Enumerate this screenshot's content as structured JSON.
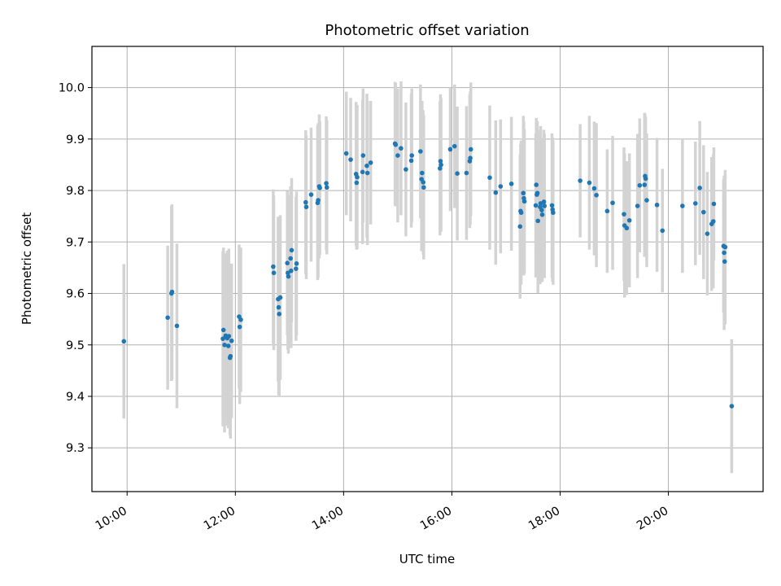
{
  "chart_data": {
    "type": "scatter",
    "title": "Photometric offset variation",
    "xlabel": "UTC time",
    "ylabel": "Photometric offset",
    "x_unit": "hours UTC",
    "xlim": [
      9.35,
      21.75
    ],
    "ylim": [
      9.215,
      10.08
    ],
    "grid": true,
    "colors": {
      "points": "#1f77b4",
      "errorbars": "#d3d3d3",
      "grid": "#b0b0b0"
    },
    "xticks": [
      {
        "value": 10,
        "label": "10:00"
      },
      {
        "value": 12,
        "label": "12:00"
      },
      {
        "value": 14,
        "label": "14:00"
      },
      {
        "value": 16,
        "label": "16:00"
      },
      {
        "value": 18,
        "label": "18:00"
      },
      {
        "value": 20,
        "label": "20:00"
      }
    ],
    "yticks": [
      {
        "value": 9.3,
        "label": "9.3"
      },
      {
        "value": 9.4,
        "label": "9.4"
      },
      {
        "value": 9.5,
        "label": "9.5"
      },
      {
        "value": 9.6,
        "label": "9.6"
      },
      {
        "value": 9.7,
        "label": "9.7"
      },
      {
        "value": 9.8,
        "label": "9.8"
      },
      {
        "value": 9.9,
        "label": "9.9"
      },
      {
        "value": 10.0,
        "label": "10.0"
      }
    ],
    "points": [
      [
        9.94,
        9.507,
        0.15
      ],
      [
        10.75,
        9.553,
        0.14
      ],
      [
        10.82,
        9.6,
        0.17
      ],
      [
        10.83,
        9.603,
        0.17
      ],
      [
        10.92,
        9.537,
        0.16
      ],
      [
        11.77,
        9.512,
        0.17
      ],
      [
        11.78,
        9.529,
        0.16
      ],
      [
        11.8,
        9.5,
        0.17
      ],
      [
        11.82,
        9.518,
        0.16
      ],
      [
        11.85,
        9.513,
        0.17
      ],
      [
        11.87,
        9.498,
        0.16
      ],
      [
        11.88,
        9.517,
        0.17
      ],
      [
        11.9,
        9.475,
        0.15
      ],
      [
        11.91,
        9.478,
        0.16
      ],
      [
        11.93,
        9.508,
        0.15
      ],
      [
        12.07,
        9.555,
        0.14
      ],
      [
        12.08,
        9.535,
        0.15
      ],
      [
        12.1,
        9.549,
        0.14
      ],
      [
        12.7,
        9.652,
        0.15
      ],
      [
        12.71,
        9.64,
        0.15
      ],
      [
        12.79,
        9.589,
        0.16
      ],
      [
        12.8,
        9.573,
        0.17
      ],
      [
        12.81,
        9.56,
        0.16
      ],
      [
        12.83,
        9.592,
        0.16
      ],
      [
        12.96,
        9.659,
        0.14
      ],
      [
        12.97,
        9.64,
        0.15
      ],
      [
        12.98,
        9.633,
        0.15
      ],
      [
        13.02,
        9.668,
        0.14
      ],
      [
        13.03,
        9.644,
        0.15
      ],
      [
        13.04,
        9.684,
        0.14
      ],
      [
        13.12,
        9.648,
        0.14
      ],
      [
        13.13,
        9.658,
        0.14
      ],
      [
        13.3,
        9.777,
        0.14
      ],
      [
        13.31,
        9.768,
        0.14
      ],
      [
        13.4,
        9.792,
        0.13
      ],
      [
        13.52,
        9.776,
        0.15
      ],
      [
        13.53,
        9.781,
        0.15
      ],
      [
        13.55,
        9.808,
        0.14
      ],
      [
        13.56,
        9.805,
        0.13
      ],
      [
        13.68,
        9.814,
        0.13
      ],
      [
        13.69,
        9.806,
        0.13
      ],
      [
        14.05,
        9.872,
        0.12
      ],
      [
        14.13,
        9.86,
        0.12
      ],
      [
        14.23,
        9.832,
        0.14
      ],
      [
        14.24,
        9.815,
        0.13
      ],
      [
        14.25,
        9.826,
        0.14
      ],
      [
        14.35,
        9.836,
        0.14
      ],
      [
        14.36,
        9.868,
        0.13
      ],
      [
        14.43,
        9.848,
        0.14
      ],
      [
        14.44,
        9.834,
        0.14
      ],
      [
        14.5,
        9.854,
        0.12
      ],
      [
        14.95,
        9.891,
        0.12
      ],
      [
        14.96,
        9.889,
        0.12
      ],
      [
        15.0,
        9.868,
        0.13
      ],
      [
        15.06,
        9.882,
        0.13
      ],
      [
        15.15,
        9.841,
        0.13
      ],
      [
        15.25,
        9.858,
        0.13
      ],
      [
        15.26,
        9.868,
        0.13
      ],
      [
        15.42,
        9.876,
        0.13
      ],
      [
        15.44,
        9.822,
        0.14
      ],
      [
        15.45,
        9.834,
        0.14
      ],
      [
        15.47,
        9.816,
        0.14
      ],
      [
        15.48,
        9.806,
        0.14
      ],
      [
        15.78,
        9.843,
        0.13
      ],
      [
        15.79,
        9.857,
        0.13
      ],
      [
        15.8,
        9.85,
        0.13
      ],
      [
        15.97,
        9.88,
        0.12
      ],
      [
        16.05,
        9.886,
        0.12
      ],
      [
        16.1,
        9.833,
        0.13
      ],
      [
        16.27,
        9.834,
        0.13
      ],
      [
        16.33,
        9.857,
        0.13
      ],
      [
        16.34,
        9.863,
        0.13
      ],
      [
        16.35,
        9.88,
        0.13
      ],
      [
        16.7,
        9.825,
        0.14
      ],
      [
        16.81,
        9.796,
        0.14
      ],
      [
        16.9,
        9.808,
        0.13
      ],
      [
        17.1,
        9.813,
        0.13
      ],
      [
        17.26,
        9.73,
        0.14
      ],
      [
        17.27,
        9.76,
        0.13
      ],
      [
        17.28,
        9.757,
        0.14
      ],
      [
        17.32,
        9.795,
        0.15
      ],
      [
        17.33,
        9.785,
        0.15
      ],
      [
        17.34,
        9.779,
        0.14
      ],
      [
        17.55,
        9.771,
        0.14
      ],
      [
        17.56,
        9.811,
        0.13
      ],
      [
        17.57,
        9.792,
        0.14
      ],
      [
        17.58,
        9.795,
        0.14
      ],
      [
        17.59,
        9.741,
        0.14
      ],
      [
        17.63,
        9.768,
        0.15
      ],
      [
        17.64,
        9.775,
        0.15
      ],
      [
        17.66,
        9.762,
        0.14
      ],
      [
        17.67,
        9.753,
        0.13
      ],
      [
        17.7,
        9.778,
        0.14
      ],
      [
        17.71,
        9.77,
        0.14
      ],
      [
        17.85,
        9.771,
        0.14
      ],
      [
        17.86,
        9.763,
        0.14
      ],
      [
        17.87,
        9.757,
        0.14
      ],
      [
        18.37,
        9.819,
        0.11
      ],
      [
        18.54,
        9.815,
        0.13
      ],
      [
        18.63,
        9.804,
        0.13
      ],
      [
        18.67,
        9.791,
        0.14
      ],
      [
        18.87,
        9.76,
        0.12
      ],
      [
        18.97,
        9.776,
        0.13
      ],
      [
        19.18,
        9.754,
        0.13
      ],
      [
        19.19,
        9.732,
        0.14
      ],
      [
        19.23,
        9.727,
        0.13
      ],
      [
        19.28,
        9.742,
        0.13
      ],
      [
        19.43,
        9.77,
        0.14
      ],
      [
        19.47,
        9.81,
        0.13
      ],
      [
        19.56,
        9.811,
        0.14
      ],
      [
        19.57,
        9.828,
        0.12
      ],
      [
        19.58,
        9.823,
        0.12
      ],
      [
        19.6,
        9.781,
        0.13
      ],
      [
        19.79,
        9.772,
        0.13
      ],
      [
        19.89,
        9.722,
        0.12
      ],
      [
        20.26,
        9.77,
        0.13
      ],
      [
        20.5,
        9.775,
        0.12
      ],
      [
        20.58,
        9.805,
        0.13
      ],
      [
        20.65,
        9.758,
        0.13
      ],
      [
        20.72,
        9.716,
        0.12
      ],
      [
        20.8,
        9.735,
        0.13
      ],
      [
        20.83,
        9.74,
        0.13
      ],
      [
        20.84,
        9.774,
        0.11
      ],
      [
        21.02,
        9.692,
        0.13
      ],
      [
        21.03,
        9.679,
        0.15
      ],
      [
        21.04,
        9.662,
        0.12
      ],
      [
        21.05,
        9.69,
        0.15
      ],
      [
        21.17,
        9.381,
        0.13
      ]
    ]
  }
}
